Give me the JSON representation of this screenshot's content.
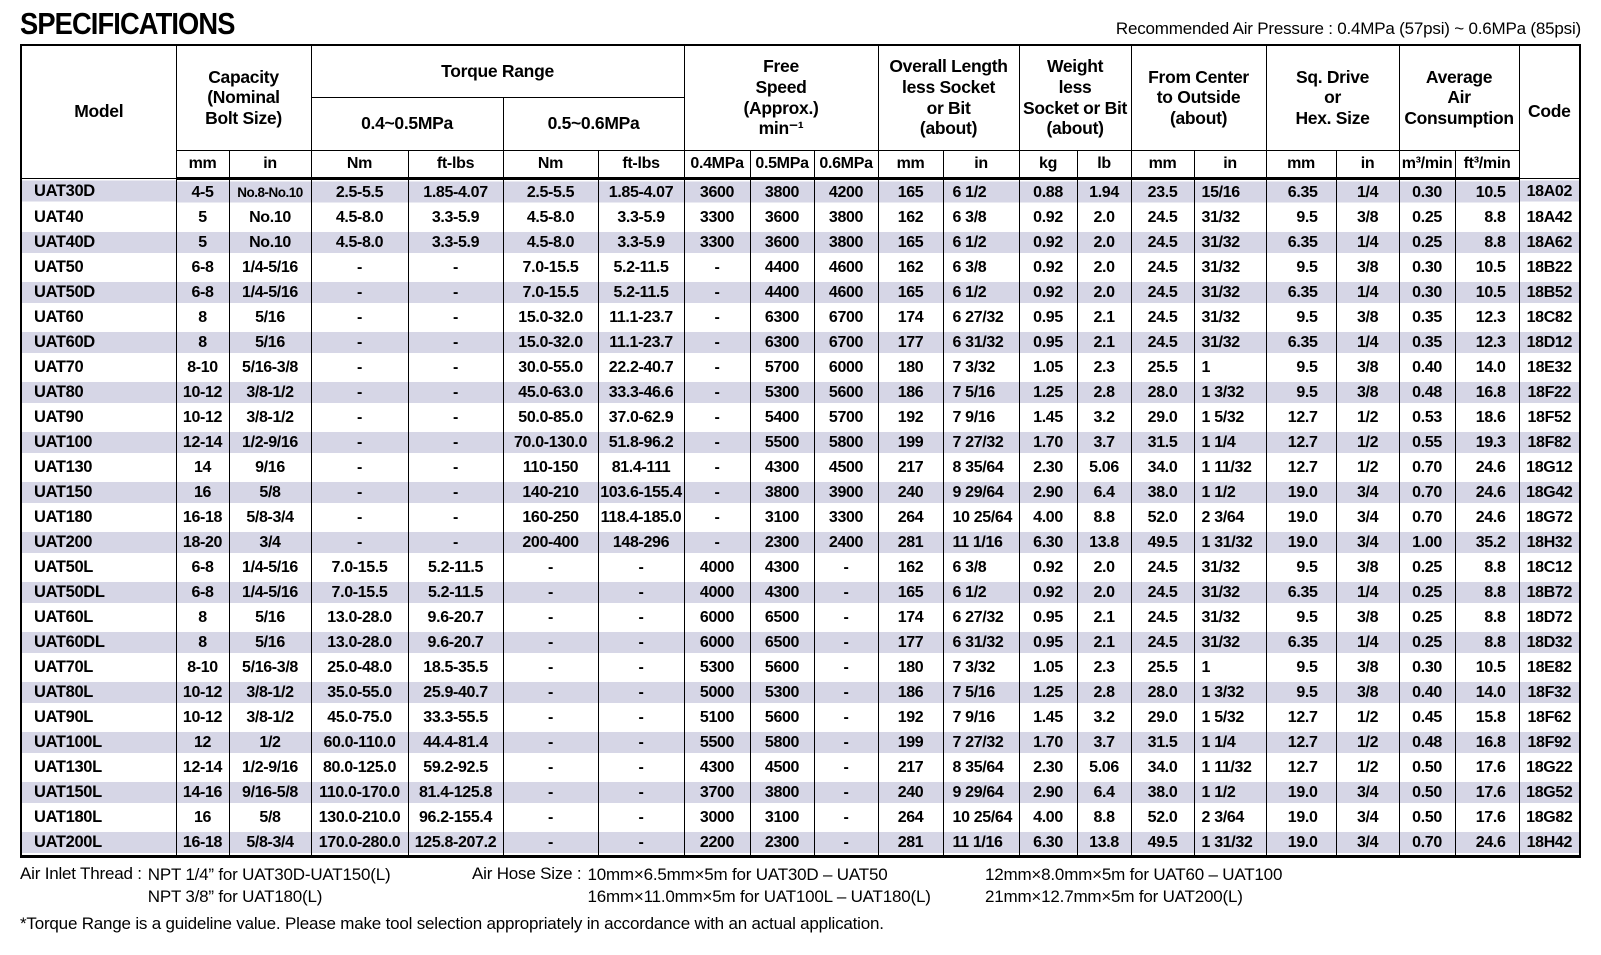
{
  "header": {
    "title": "SPECIFICATIONS",
    "air_pressure_note": "Recommended Air Pressure : 0.4MPa (57psi) ~ 0.6MPa (85psi)"
  },
  "colors": {
    "row_stripe": "#d6d6e6",
    "border": "#000000"
  },
  "table": {
    "column_groups": {
      "model": "Model",
      "capacity": "Capacity\n(Nominal\nBolt Size)",
      "torque_range": "Torque Range",
      "torque_low": "0.4~0.5MPa",
      "torque_high": "0.5~0.6MPa",
      "free_speed": "Free\nSpeed\n(Approx.)\nmin⁻¹",
      "overall_length": "Overall Length\nless Socket\nor Bit\n(about)",
      "weight": "Weight\nless\nSocket or Bit\n(about)",
      "from_center": "From Center\nto Outside\n(about)",
      "sq_drive": "Sq. Drive\nor\nHex. Size",
      "air_consumption": "Average\nAir\nConsumption",
      "code": "Code"
    },
    "units": [
      "mm",
      "in",
      "Nm",
      "ft-lbs",
      "Nm",
      "ft-lbs",
      "0.4MPa",
      "0.5MPa",
      "0.6MPa",
      "mm",
      "in",
      "kg",
      "lb",
      "mm",
      "in",
      "mm",
      "in",
      "m³/min",
      "ft³/min"
    ],
    "rows": [
      [
        "UAT30D",
        "4-5",
        "No.8-No.10",
        "2.5-5.5",
        "1.85-4.07",
        "2.5-5.5",
        "1.85-4.07",
        "3600",
        "3800",
        "4200",
        "165",
        "6 1/2",
        "0.88",
        "1.94",
        "23.5",
        "15/16",
        "6.35",
        "1/4",
        "0.30",
        "10.5",
        "18A02"
      ],
      [
        "UAT40",
        "5",
        "No.10",
        "4.5-8.0",
        "3.3-5.9",
        "4.5-8.0",
        "3.3-5.9",
        "3300",
        "3600",
        "3800",
        "162",
        "6 3/8",
        "0.92",
        "2.0",
        "24.5",
        "31/32",
        "9.5",
        "3/8",
        "0.25",
        "8.8",
        "18A42"
      ],
      [
        "UAT40D",
        "5",
        "No.10",
        "4.5-8.0",
        "3.3-5.9",
        "4.5-8.0",
        "3.3-5.9",
        "3300",
        "3600",
        "3800",
        "165",
        "6 1/2",
        "0.92",
        "2.0",
        "24.5",
        "31/32",
        "6.35",
        "1/4",
        "0.25",
        "8.8",
        "18A62"
      ],
      [
        "UAT50",
        "6-8",
        "1/4-5/16",
        "-",
        "-",
        "7.0-15.5",
        "5.2-11.5",
        "-",
        "4400",
        "4600",
        "162",
        "6 3/8",
        "0.92",
        "2.0",
        "24.5",
        "31/32",
        "9.5",
        "3/8",
        "0.30",
        "10.5",
        "18B22"
      ],
      [
        "UAT50D",
        "6-8",
        "1/4-5/16",
        "-",
        "-",
        "7.0-15.5",
        "5.2-11.5",
        "-",
        "4400",
        "4600",
        "165",
        "6 1/2",
        "0.92",
        "2.0",
        "24.5",
        "31/32",
        "6.35",
        "1/4",
        "0.30",
        "10.5",
        "18B52"
      ],
      [
        "UAT60",
        "8",
        "5/16",
        "-",
        "-",
        "15.0-32.0",
        "11.1-23.7",
        "-",
        "6300",
        "6700",
        "174",
        "6 27/32",
        "0.95",
        "2.1",
        "24.5",
        "31/32",
        "9.5",
        "3/8",
        "0.35",
        "12.3",
        "18C82"
      ],
      [
        "UAT60D",
        "8",
        "5/16",
        "-",
        "-",
        "15.0-32.0",
        "11.1-23.7",
        "-",
        "6300",
        "6700",
        "177",
        "6 31/32",
        "0.95",
        "2.1",
        "24.5",
        "31/32",
        "6.35",
        "1/4",
        "0.35",
        "12.3",
        "18D12"
      ],
      [
        "UAT70",
        "8-10",
        "5/16-3/8",
        "-",
        "-",
        "30.0-55.0",
        "22.2-40.7",
        "-",
        "5700",
        "6000",
        "180",
        "7 3/32",
        "1.05",
        "2.3",
        "25.5",
        "1",
        "9.5",
        "3/8",
        "0.40",
        "14.0",
        "18E32"
      ],
      [
        "UAT80",
        "10-12",
        "3/8-1/2",
        "-",
        "-",
        "45.0-63.0",
        "33.3-46.6",
        "-",
        "5300",
        "5600",
        "186",
        "7 5/16",
        "1.25",
        "2.8",
        "28.0",
        "1 3/32",
        "9.5",
        "3/8",
        "0.48",
        "16.8",
        "18F22"
      ],
      [
        "UAT90",
        "10-12",
        "3/8-1/2",
        "-",
        "-",
        "50.0-85.0",
        "37.0-62.9",
        "-",
        "5400",
        "5700",
        "192",
        "7 9/16",
        "1.45",
        "3.2",
        "29.0",
        "1 5/32",
        "12.7",
        "1/2",
        "0.53",
        "18.6",
        "18F52"
      ],
      [
        "UAT100",
        "12-14",
        "1/2-9/16",
        "-",
        "-",
        "70.0-130.0",
        "51.8-96.2",
        "-",
        "5500",
        "5800",
        "199",
        "7 27/32",
        "1.70",
        "3.7",
        "31.5",
        "1 1/4",
        "12.7",
        "1/2",
        "0.55",
        "19.3",
        "18F82"
      ],
      [
        "UAT130",
        "14",
        "9/16",
        "-",
        "-",
        "110-150",
        "81.4-111",
        "-",
        "4300",
        "4500",
        "217",
        "8 35/64",
        "2.30",
        "5.06",
        "34.0",
        "1 11/32",
        "12.7",
        "1/2",
        "0.70",
        "24.6",
        "18G12"
      ],
      [
        "UAT150",
        "16",
        "5/8",
        "-",
        "-",
        "140-210",
        "103.6-155.4",
        "-",
        "3800",
        "3900",
        "240",
        "9 29/64",
        "2.90",
        "6.4",
        "38.0",
        "1 1/2",
        "19.0",
        "3/4",
        "0.70",
        "24.6",
        "18G42"
      ],
      [
        "UAT180",
        "16-18",
        "5/8-3/4",
        "-",
        "-",
        "160-250",
        "118.4-185.0",
        "-",
        "3100",
        "3300",
        "264",
        "10 25/64",
        "4.00",
        "8.8",
        "52.0",
        "2 3/64",
        "19.0",
        "3/4",
        "0.70",
        "24.6",
        "18G72"
      ],
      [
        "UAT200",
        "18-20",
        "3/4",
        "-",
        "-",
        "200-400",
        "148-296",
        "-",
        "2300",
        "2400",
        "281",
        "11 1/16",
        "6.30",
        "13.8",
        "49.5",
        "1 31/32",
        "19.0",
        "3/4",
        "1.00",
        "35.2",
        "18H32"
      ],
      [
        "UAT50L",
        "6-8",
        "1/4-5/16",
        "7.0-15.5",
        "5.2-11.5",
        "-",
        "-",
        "4000",
        "4300",
        "-",
        "162",
        "6 3/8",
        "0.92",
        "2.0",
        "24.5",
        "31/32",
        "9.5",
        "3/8",
        "0.25",
        "8.8",
        "18C12"
      ],
      [
        "UAT50DL",
        "6-8",
        "1/4-5/16",
        "7.0-15.5",
        "5.2-11.5",
        "-",
        "-",
        "4000",
        "4300",
        "-",
        "165",
        "6 1/2",
        "0.92",
        "2.0",
        "24.5",
        "31/32",
        "6.35",
        "1/4",
        "0.25",
        "8.8",
        "18B72"
      ],
      [
        "UAT60L",
        "8",
        "5/16",
        "13.0-28.0",
        "9.6-20.7",
        "-",
        "-",
        "6000",
        "6500",
        "-",
        "174",
        "6 27/32",
        "0.95",
        "2.1",
        "24.5",
        "31/32",
        "9.5",
        "3/8",
        "0.25",
        "8.8",
        "18D72"
      ],
      [
        "UAT60DL",
        "8",
        "5/16",
        "13.0-28.0",
        "9.6-20.7",
        "-",
        "-",
        "6000",
        "6500",
        "-",
        "177",
        "6 31/32",
        "0.95",
        "2.1",
        "24.5",
        "31/32",
        "6.35",
        "1/4",
        "0.25",
        "8.8",
        "18D32"
      ],
      [
        "UAT70L",
        "8-10",
        "5/16-3/8",
        "25.0-48.0",
        "18.5-35.5",
        "-",
        "-",
        "5300",
        "5600",
        "-",
        "180",
        "7 3/32",
        "1.05",
        "2.3",
        "25.5",
        "1",
        "9.5",
        "3/8",
        "0.30",
        "10.5",
        "18E82"
      ],
      [
        "UAT80L",
        "10-12",
        "3/8-1/2",
        "35.0-55.0",
        "25.9-40.7",
        "-",
        "-",
        "5000",
        "5300",
        "-",
        "186",
        "7 5/16",
        "1.25",
        "2.8",
        "28.0",
        "1 3/32",
        "9.5",
        "3/8",
        "0.40",
        "14.0",
        "18F32"
      ],
      [
        "UAT90L",
        "10-12",
        "3/8-1/2",
        "45.0-75.0",
        "33.3-55.5",
        "-",
        "-",
        "5100",
        "5600",
        "-",
        "192",
        "7 9/16",
        "1.45",
        "3.2",
        "29.0",
        "1 5/32",
        "12.7",
        "1/2",
        "0.45",
        "15.8",
        "18F62"
      ],
      [
        "UAT100L",
        "12",
        "1/2",
        "60.0-110.0",
        "44.4-81.4",
        "-",
        "-",
        "5500",
        "5800",
        "-",
        "199",
        "7 27/32",
        "1.70",
        "3.7",
        "31.5",
        "1 1/4",
        "12.7",
        "1/2",
        "0.48",
        "16.8",
        "18F92"
      ],
      [
        "UAT130L",
        "12-14",
        "1/2-9/16",
        "80.0-125.0",
        "59.2-92.5",
        "-",
        "-",
        "4300",
        "4500",
        "-",
        "217",
        "8 35/64",
        "2.30",
        "5.06",
        "34.0",
        "1 11/32",
        "12.7",
        "1/2",
        "0.50",
        "17.6",
        "18G22"
      ],
      [
        "UAT150L",
        "14-16",
        "9/16-5/8",
        "110.0-170.0",
        "81.4-125.8",
        "-",
        "-",
        "3700",
        "3800",
        "-",
        "240",
        "9 29/64",
        "2.90",
        "6.4",
        "38.0",
        "1 1/2",
        "19.0",
        "3/4",
        "0.50",
        "17.6",
        "18G52"
      ],
      [
        "UAT180L",
        "16",
        "5/8",
        "130.0-210.0",
        "96.2-155.4",
        "-",
        "-",
        "3000",
        "3100",
        "-",
        "264",
        "10 25/64",
        "4.00",
        "8.8",
        "52.0",
        "2 3/64",
        "19.0",
        "3/4",
        "0.50",
        "17.6",
        "18G82"
      ],
      [
        "UAT200L",
        "16-18",
        "5/8-3/4",
        "170.0-280.0",
        "125.8-207.2",
        "-",
        "-",
        "2200",
        "2300",
        "-",
        "281",
        "11 1/16",
        "6.30",
        "13.8",
        "49.5",
        "1 31/32",
        "19.0",
        "3/4",
        "0.70",
        "24.6",
        "18H42"
      ]
    ]
  },
  "footer": {
    "air_inlet": {
      "label": "Air Inlet Thread :",
      "line1": "NPT 1/4” for UAT30D-UAT150(L)",
      "line2": "NPT 3/8” for UAT180(L)"
    },
    "air_hose": {
      "label": "Air Hose Size :",
      "line1": "10mm×6.5mm×5m for UAT30D – UAT50",
      "line2": "16mm×11.0mm×5m for UAT100L – UAT180(L)"
    },
    "air_hose_2": {
      "line1": "12mm×8.0mm×5m for UAT60 – UAT100",
      "line2": "21mm×12.7mm×5m for UAT200(L)"
    },
    "note": "*Torque Range is a guideline value. Please make tool selection appropriately in accordance with an actual application."
  }
}
